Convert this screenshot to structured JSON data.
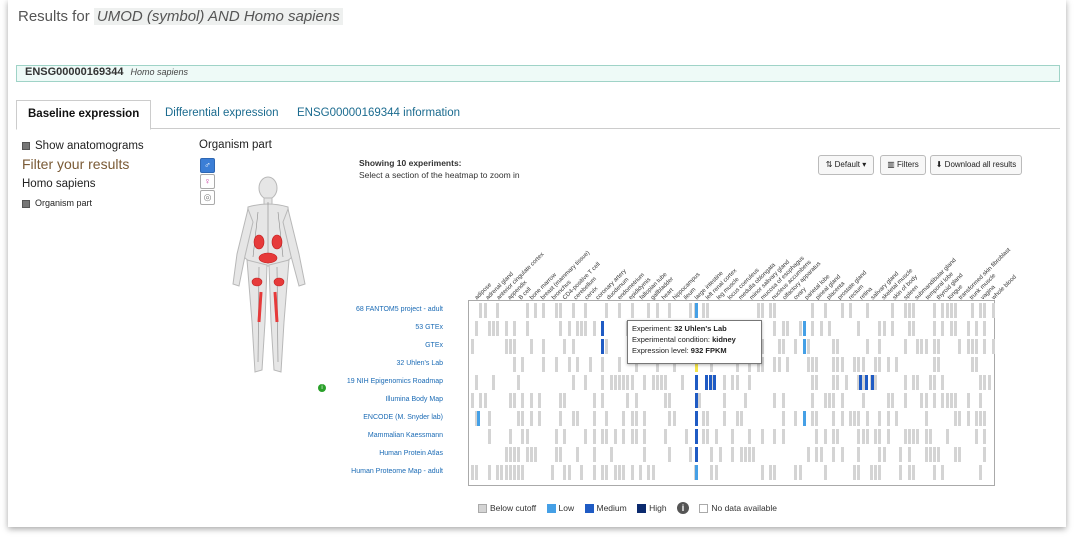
{
  "header": {
    "prefix": "Results for",
    "query": "UMOD (symbol) AND Homo sapiens"
  },
  "gene": {
    "id": "ENSG00000169344",
    "species": "Homo sapiens"
  },
  "tabs": [
    {
      "label": "Baseline expression"
    },
    {
      "label": "Differential expression"
    },
    {
      "label": "ENSG00000169344 information"
    }
  ],
  "sidebar": {
    "show_anatomograms": "Show anatomograms",
    "filter_title": "Filter your results",
    "species": "Homo sapiens",
    "organism_part": "Organism part"
  },
  "organism_part_title": "Organism part",
  "experiments": {
    "showing": "Showing 10 experiments:",
    "hint": "Select a section of the heatmap to zoom in"
  },
  "buttons": {
    "default": "Default",
    "filters": "Filters",
    "download": "Download all results"
  },
  "heatmap": {
    "rows": [
      "68 FANTOM5 project - adult",
      "53 GTEx",
      "GTEx",
      "32 Uhlen's Lab",
      "19 NIH Epigenomics Roadmap",
      "Illumina Body Map",
      "ENCODE (M. Snyder lab)",
      "Mammalian Kaessmann",
      "Human Protein Atlas",
      "Human Proteome Map - adult"
    ],
    "columns": [
      "adipose",
      "adrenal gland",
      "anterior cingulate cortex",
      "appendix",
      "B cell",
      "bone marrow",
      "breast (mammary tissue)",
      "bronchus",
      "CD4-positive T cell",
      "cerebellum",
      "cervix",
      "coronary artery",
      "duodenum",
      "endometrium",
      "epididymis",
      "fallopian tube",
      "gallbladder",
      "heart",
      "hippocampus",
      "ileum",
      "large intestine",
      "left renal cortex",
      "leg muscle",
      "locus coeruleus",
      "medulla oblongata",
      "minor salivary gland",
      "mucosa of esophagus",
      "nucleus accumbens",
      "olfactory apparatus",
      "ovary",
      "parietal lobe",
      "pineal gland",
      "placenta",
      "prostate gland",
      "rectum",
      "retina",
      "salivary gland",
      "skeletal muscle",
      "skin of body",
      "spleen",
      "submandibular gland",
      "temporal lobe",
      "thyroid gland",
      "tongue",
      "transformed skin fibroblast",
      "trunk muscle",
      "vagina",
      "whole blood"
    ]
  },
  "tooltip": {
    "experiment_label": "Experiment:",
    "experiment": "32 Uhlen's Lab",
    "condition_label": "Experimental condition:",
    "condition": "kidney",
    "level_label": "Expression level:",
    "level": "932 FPKM"
  },
  "legend": {
    "below_cutoff": "Below cutoff",
    "low": "Low",
    "medium": "Medium",
    "high": "High",
    "no_data": "No data available"
  },
  "colors": {
    "accent": "#1b6b8f",
    "below_cutoff": "#d4d4d4",
    "low": "#45a0e6",
    "medium": "#1f5bc4",
    "high": "#0b2a6e",
    "selected": "#f4e44a"
  }
}
